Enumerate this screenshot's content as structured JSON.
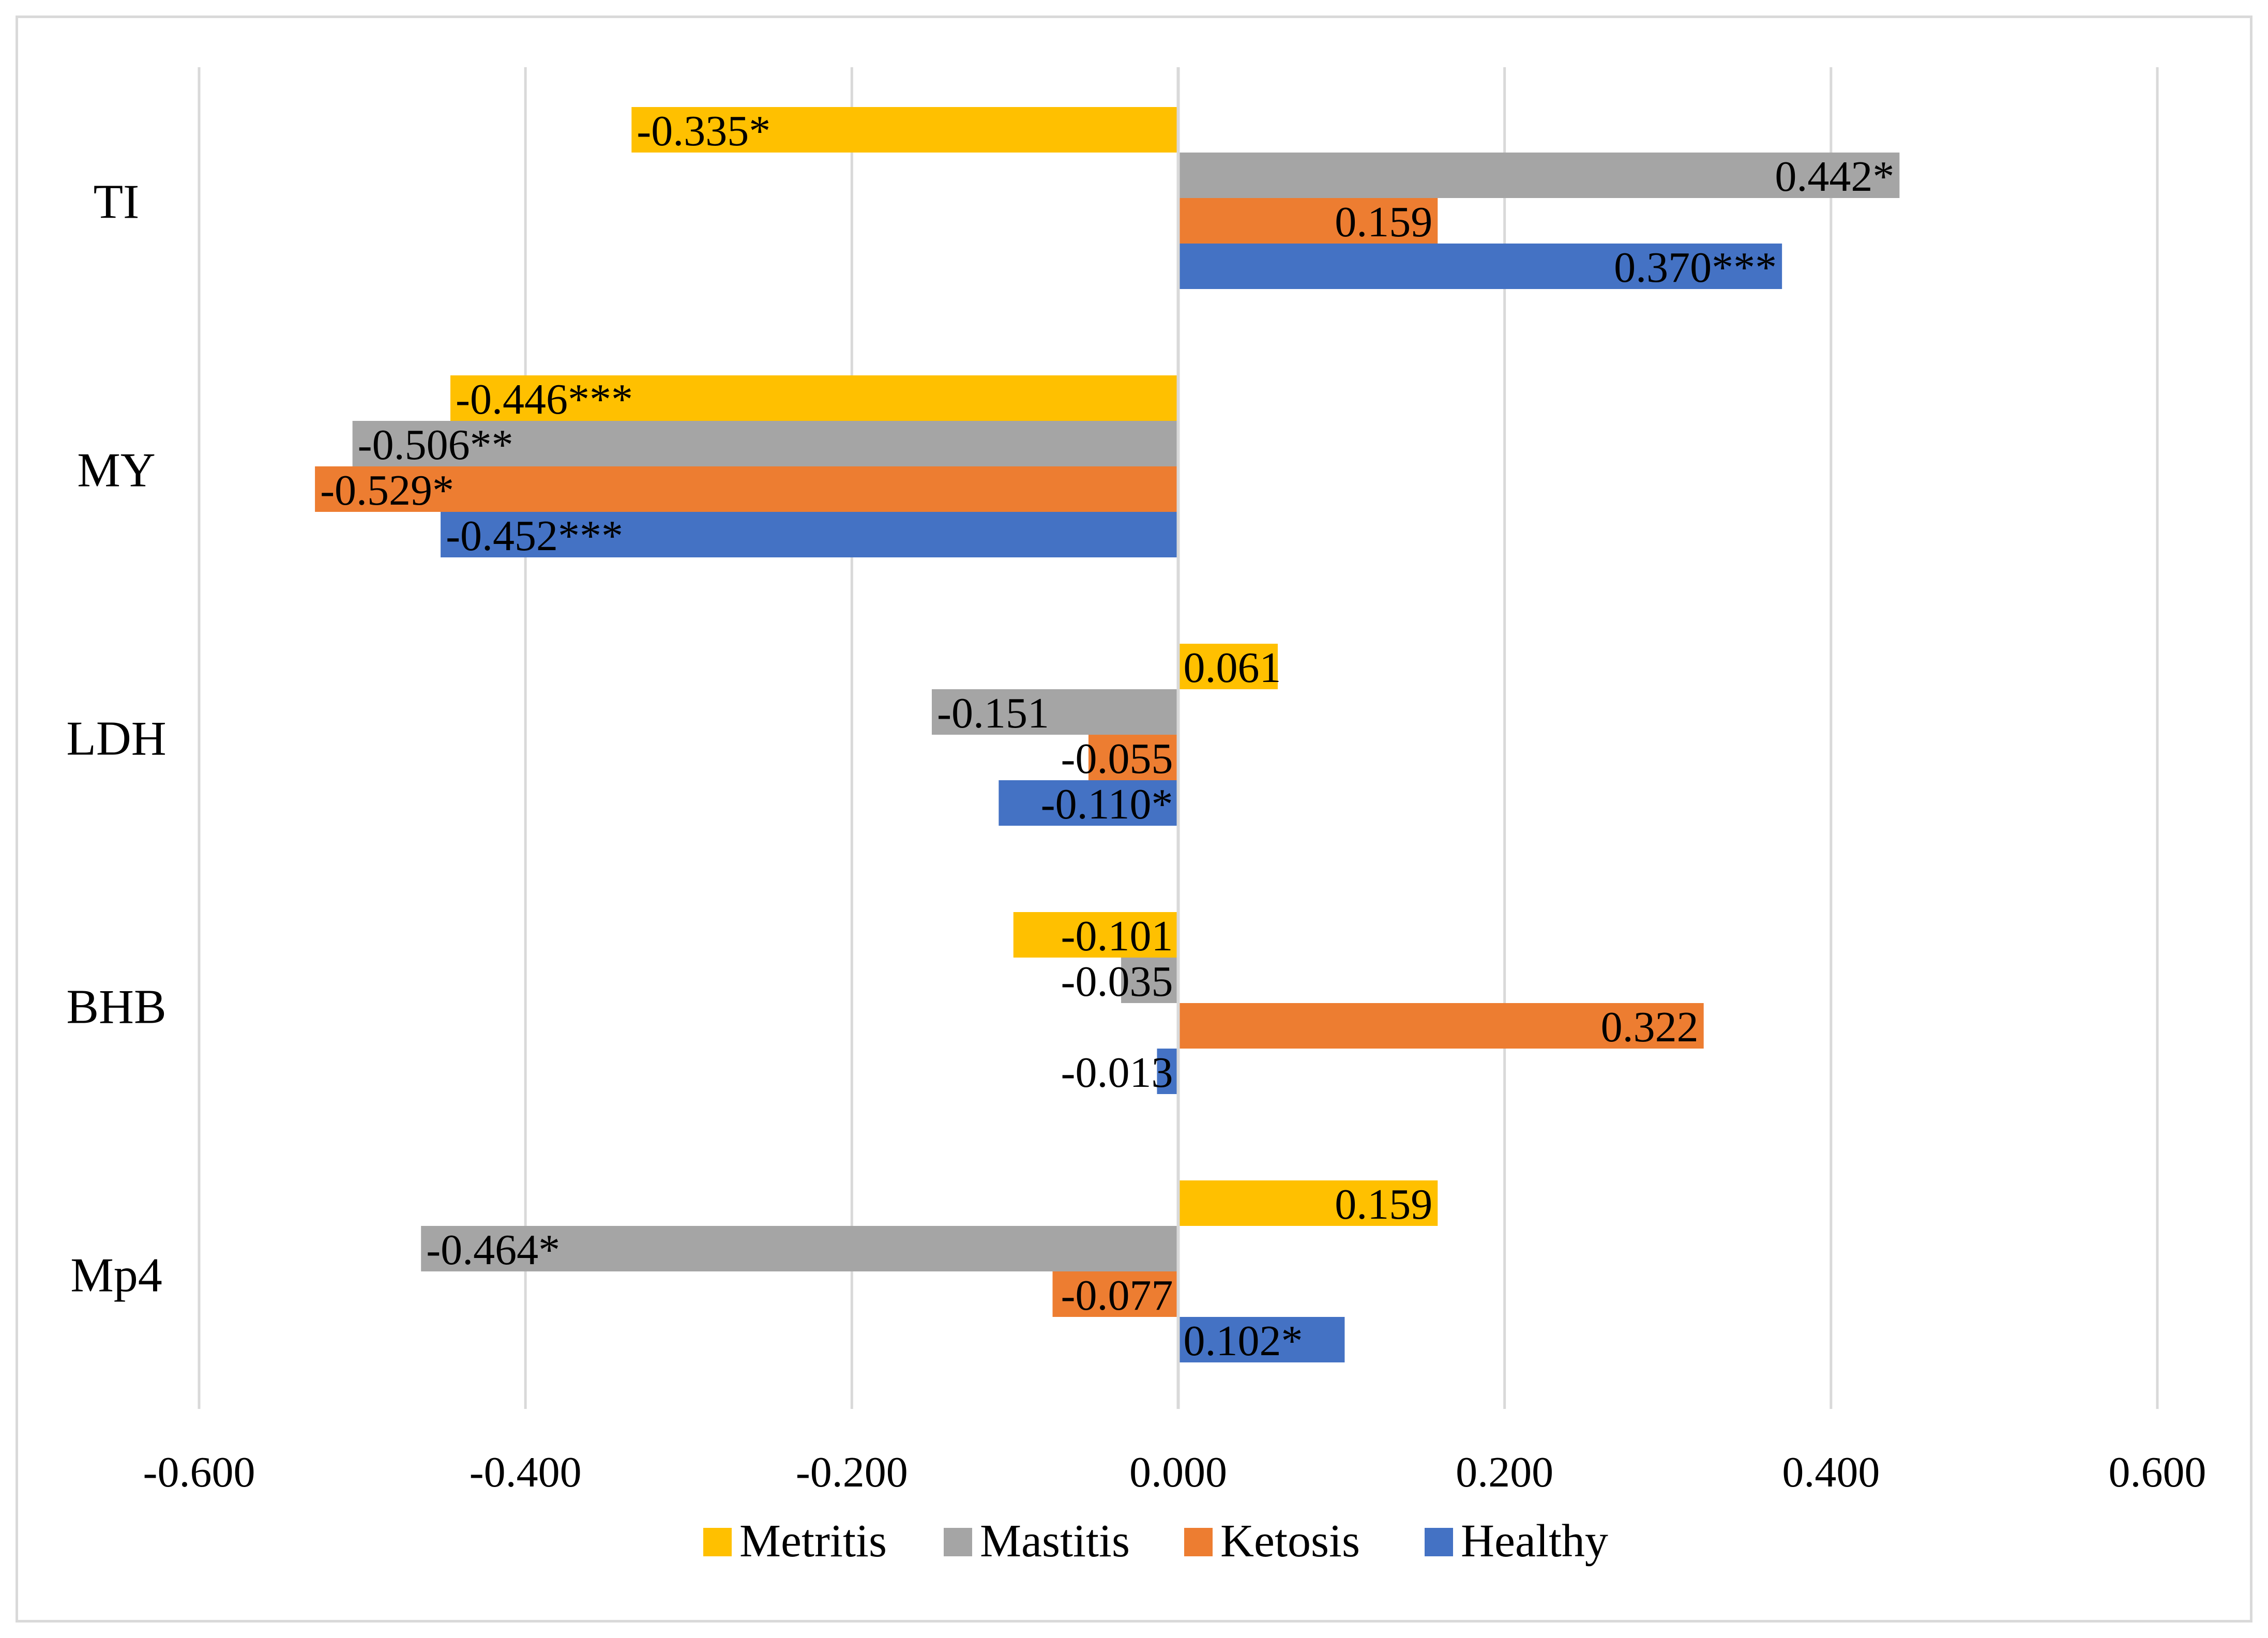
{
  "chart_data": {
    "type": "bar",
    "orientation": "horizontal",
    "title": "",
    "xlabel": "",
    "ylabel": "",
    "xlim": [
      -0.6,
      0.6
    ],
    "x_ticks": [
      -0.6,
      -0.4,
      -0.2,
      0.0,
      0.2,
      0.4,
      0.6
    ],
    "x_tick_labels": [
      "-0.600",
      "-0.400",
      "-0.200",
      "0.000",
      "0.200",
      "0.400",
      "0.600"
    ],
    "grid": "vertical",
    "legend_position": "bottom",
    "categories": [
      "TI",
      "MY",
      "LDH",
      "BHB",
      "Mp4"
    ],
    "series": [
      {
        "name": "Metritis",
        "color": "#ffc000",
        "values": [
          -0.335,
          -0.446,
          0.061,
          -0.101,
          0.159
        ],
        "labels": [
          "-0.335*",
          "-0.446***",
          "0.061",
          "-0.101",
          "0.159"
        ]
      },
      {
        "name": "Mastitis",
        "color": "#a5a5a5",
        "values": [
          0.442,
          -0.506,
          -0.151,
          -0.035,
          -0.464
        ],
        "labels": [
          "0.442*",
          "-0.506**",
          "-0.151",
          "-0.035",
          "-0.464*"
        ]
      },
      {
        "name": "Ketosis",
        "color": "#ed7d31",
        "values": [
          0.159,
          -0.529,
          -0.055,
          0.322,
          -0.077
        ],
        "labels": [
          "0.159",
          "-0.529*",
          "-0.055",
          "0.322",
          "-0.077"
        ]
      },
      {
        "name": "Healthy",
        "color": "#4472c4",
        "values": [
          0.37,
          -0.452,
          -0.11,
          -0.013,
          0.102
        ],
        "labels": [
          "0.370***",
          "-0.452***",
          "-0.110*",
          "-0.013",
          "0.102*"
        ]
      }
    ]
  }
}
